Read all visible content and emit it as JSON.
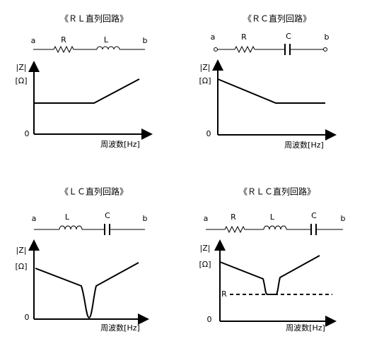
{
  "panels": [
    {
      "title": "《ＲＬ直列回路》",
      "terminal_a": "a",
      "terminal_b": "b",
      "components": [
        "R",
        "L"
      ],
      "y_label": "|Z|",
      "y_unit": "[Ω]",
      "origin": "0",
      "x_label": "周波数[Hz]"
    },
    {
      "title": "《ＲＣ直列回路》",
      "terminal_a": "a",
      "terminal_b": "b",
      "components": [
        "R",
        "C"
      ],
      "y_label": "|Z|",
      "y_unit": "[Ω]",
      "origin": "0",
      "x_label": "周波数[Hz]"
    },
    {
      "title": "《ＬＣ直列回路》",
      "terminal_a": "a",
      "terminal_b": "b",
      "components": [
        "L",
        "C"
      ],
      "y_label": "|Z|",
      "y_unit": "[Ω]",
      "origin": "0",
      "x_label": "周波数[Hz]"
    },
    {
      "title": "《ＲＬＣ直列回路》",
      "terminal_a": "a",
      "terminal_b": "b",
      "components": [
        "R",
        "L",
        "C"
      ],
      "y_label": "|Z|",
      "y_unit": "[Ω]",
      "origin": "0",
      "x_label": "周波数[Hz]",
      "level_label": "R"
    }
  ]
}
